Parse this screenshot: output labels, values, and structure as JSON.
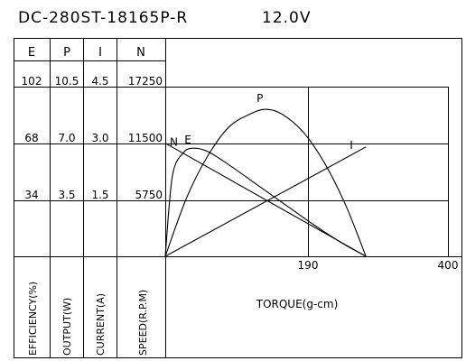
{
  "chart_data": {
    "type": "line",
    "title": "DC-280ST-18165P-R",
    "voltage": "12.0V",
    "column_headers": [
      "E",
      "P",
      "I",
      "N"
    ],
    "y_tick_rows": [
      [
        "102",
        "10.5",
        "4.5",
        "17250"
      ],
      [
        "68",
        "7.0",
        "3.0",
        "11500"
      ],
      [
        "34",
        "3.5",
        "1.5",
        "5750"
      ]
    ],
    "y_axis_labels": [
      "EFFICIENCY(%)",
      "OUTPUT(W)",
      "CURRENT(A)",
      "SPEED(R.P.M)"
    ],
    "xlabel": "TORQUE(g-cm)",
    "x_tick_labels": [
      "190",
      "400"
    ],
    "xlim": [
      0,
      400
    ],
    "series": [
      {
        "name": "N",
        "unit": "rpm",
        "ylim": [
          0,
          17250
        ],
        "x": [
          0,
          284
        ],
        "y": [
          11500,
          0
        ]
      },
      {
        "name": "E",
        "unit": "%",
        "ylim": [
          0,
          102
        ],
        "x": [
          0,
          10,
          25,
          40,
          60,
          90,
          130,
          170,
          210,
          250,
          284
        ],
        "y": [
          0,
          48,
          62,
          65,
          63,
          55,
          43,
          31,
          19,
          8,
          0
        ]
      },
      {
        "name": "P",
        "unit": "W",
        "ylim": [
          0,
          10.5
        ],
        "x": [
          0,
          30,
          60,
          90,
          120,
          142,
          165,
          195,
          225,
          255,
          284
        ],
        "y": [
          0,
          3.6,
          6.2,
          8.0,
          8.8,
          9.1,
          8.8,
          7.7,
          5.8,
          3.2,
          0
        ]
      },
      {
        "name": "I",
        "unit": "A",
        "ylim": [
          0,
          4.5
        ],
        "x": [
          0,
          284
        ],
        "y": [
          0,
          2.9
        ]
      }
    ]
  }
}
